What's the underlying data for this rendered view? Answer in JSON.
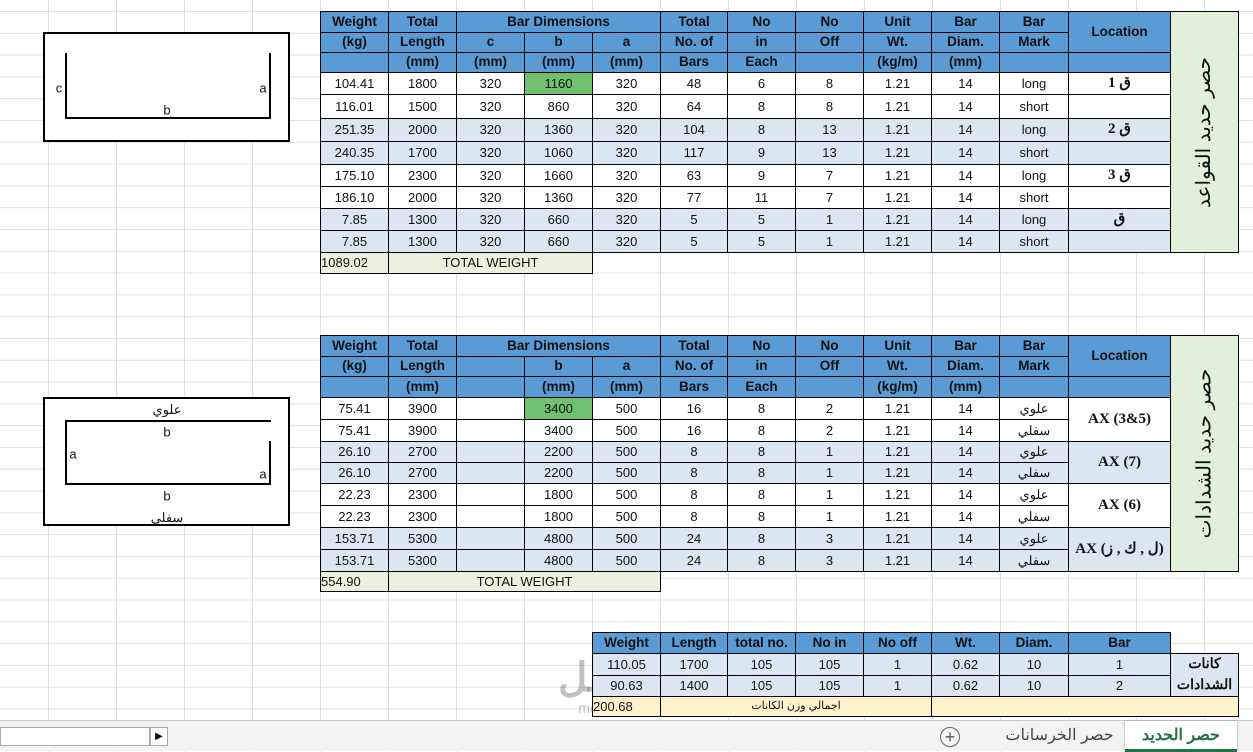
{
  "diagrams": [
    {
      "labels": [
        "c",
        "a",
        "b"
      ]
    },
    {
      "labels": [
        "علوي",
        "b",
        "a",
        "a",
        "b",
        "سفلي"
      ]
    }
  ],
  "tables": [
    {
      "side_label": "حصر حديد القواعد",
      "header_rows": [
        [
          "Weight",
          "Total",
          "Bar Dimensions",
          null,
          null,
          "Total",
          "No",
          "No",
          "Unit",
          "Bar",
          "Bar",
          "Location"
        ],
        [
          "(kg)",
          "Length",
          "c",
          "b",
          "a",
          "No. of",
          "in",
          "Off",
          "Wt.",
          "Diam.",
          "Mark",
          null
        ],
        [
          null,
          "(mm)",
          "(mm)",
          "(mm)",
          "(mm)",
          "Bars",
          "Each",
          null,
          "(kg/m)",
          "(mm)",
          null,
          null
        ]
      ],
      "rows": [
        [
          "104.41",
          "1800",
          "320",
          "1160",
          "320",
          "48",
          "6",
          "8",
          "1.21",
          "14",
          "long",
          "ق 1"
        ],
        [
          "116.01",
          "1500",
          "320",
          "860",
          "320",
          "64",
          "8",
          "8",
          "1.21",
          "14",
          "short",
          null
        ],
        [
          "251.35",
          "2000",
          "320",
          "1360",
          "320",
          "104",
          "8",
          "13",
          "1.21",
          "14",
          "long",
          "ق 2"
        ],
        [
          "240.35",
          "1700",
          "320",
          "1060",
          "320",
          "117",
          "9",
          "13",
          "1.21",
          "14",
          "short",
          null
        ],
        [
          "175.10",
          "2300",
          "320",
          "1660",
          "320",
          "63",
          "9",
          "7",
          "1.21",
          "14",
          "long",
          "ق 3"
        ],
        [
          "186.10",
          "2000",
          "320",
          "1360",
          "320",
          "77",
          "11",
          "7",
          "1.21",
          "14",
          "short",
          null
        ],
        [
          "7.85",
          "1300",
          "320",
          "660",
          "320",
          "5",
          "5",
          "1",
          "1.21",
          "14",
          "long",
          "ق"
        ],
        [
          "7.85",
          "1300",
          "320",
          "660",
          "320",
          "5",
          "5",
          "1",
          "1.21",
          "14",
          "short",
          null
        ]
      ],
      "total": {
        "value": "1089.02",
        "label": "TOTAL WEIGHT"
      }
    },
    {
      "side_label": "حصر حديد الشدادات",
      "header_rows": [
        [
          "Weight",
          "Total",
          "Bar Dimensions",
          null,
          null,
          "Total",
          "No",
          "No",
          "Unit",
          "Bar",
          "Bar",
          "Location"
        ],
        [
          "(kg)",
          "Length",
          null,
          "b",
          "a",
          "No. of",
          "in",
          "Off",
          "Wt.",
          "Diam.",
          "Mark",
          null
        ],
        [
          null,
          "(mm)",
          null,
          "(mm)",
          "(mm)",
          "Bars",
          "Each",
          null,
          "(kg/m)",
          "(mm)",
          null,
          null
        ]
      ],
      "rows": [
        [
          "75.41",
          "3900",
          null,
          "3400",
          "500",
          "16",
          "8",
          "2",
          "1.21",
          "14",
          "علوي"
        ],
        [
          "75.41",
          "3900",
          null,
          "3400",
          "500",
          "16",
          "8",
          "2",
          "1.21",
          "14",
          "سفلي"
        ],
        [
          "26.10",
          "2700",
          null,
          "2200",
          "500",
          "8",
          "8",
          "1",
          "1.21",
          "14",
          "علوي"
        ],
        [
          "26.10",
          "2700",
          null,
          "2200",
          "500",
          "8",
          "8",
          "1",
          "1.21",
          "14",
          "سفلي"
        ],
        [
          "22.23",
          "2300",
          null,
          "1800",
          "500",
          "8",
          "8",
          "1",
          "1.21",
          "14",
          "علوي"
        ],
        [
          "22.23",
          "2300",
          null,
          "1800",
          "500",
          "8",
          "8",
          "1",
          "1.21",
          "14",
          "سفلي"
        ],
        [
          "153.71",
          "5300",
          null,
          "4800",
          "500",
          "24",
          "8",
          "3",
          "1.21",
          "14",
          "علوي"
        ],
        [
          "153.71",
          "5300",
          null,
          "4800",
          "500",
          "24",
          "8",
          "3",
          "1.21",
          "14",
          "سفلي"
        ]
      ],
      "locations": [
        "AX (3&5)",
        "AX (7)",
        "AX (6)",
        "AX (ل , ك , ز)"
      ],
      "total": {
        "value": "554.90",
        "label": "TOTAL WEIGHT"
      }
    },
    {
      "side_label": "كانات الشدادات",
      "header_rows": [
        [
          "Weight",
          "Length",
          "total no.",
          "No in",
          "No off",
          "Wt.",
          "Diam.",
          "Bar"
        ]
      ],
      "rows": [
        [
          "110.05",
          "1700",
          "105",
          "105",
          "1",
          "0.62",
          "10",
          "1"
        ],
        [
          "90.63",
          "1400",
          "105",
          "105",
          "1",
          "0.62",
          "10",
          "2"
        ]
      ],
      "total": {
        "value": "200.68",
        "label": "اجمالي وزن الكانات"
      }
    }
  ],
  "tabs": [
    "حصر الحديد",
    "حصر الخرسانات"
  ],
  "watermark": [
    "مستقل",
    "mostaql.com"
  ]
}
